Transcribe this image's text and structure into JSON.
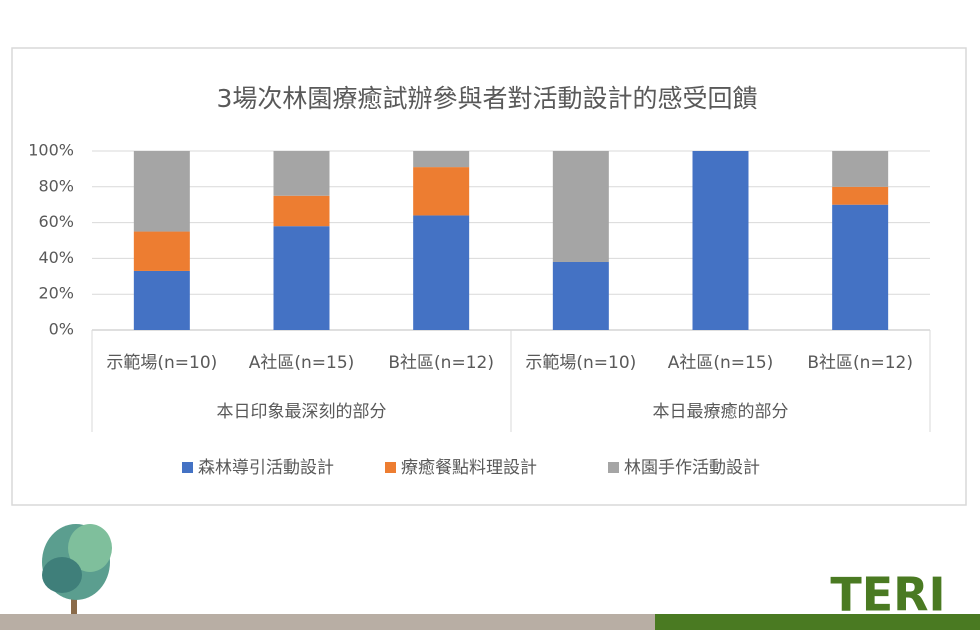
{
  "chart_data": {
    "type": "stacked-bar",
    "title": "3場次林園療癒試辦參與者對活動設計的感受回饋",
    "categories": [
      "示範場(n=10)",
      "A社區(n=15)",
      "B社區(n=12)",
      "示範場(n=10)",
      "A社區(n=15)",
      "B社區(n=12)"
    ],
    "category_groups": [
      "本日印象最深刻的部分",
      "本日最療癒的部分"
    ],
    "series": [
      {
        "name": "森林導引活動設計",
        "color": "#4472c4",
        "values": [
          33,
          58,
          64,
          38,
          100,
          70
        ]
      },
      {
        "name": "療癒餐點料理設計",
        "color": "#ed7d31",
        "values": [
          22,
          17,
          27,
          0,
          0,
          10
        ]
      },
      {
        "name": "林園手作活動設計",
        "color": "#a5a5a5",
        "values": [
          45,
          25,
          9,
          62,
          0,
          20
        ]
      }
    ],
    "ylim": [
      0,
      100
    ],
    "yticks": [
      {
        "value": 0,
        "label": "0%"
      },
      {
        "value": 20,
        "label": "20%"
      },
      {
        "value": 40,
        "label": "40%"
      },
      {
        "value": 60,
        "label": "60%"
      },
      {
        "value": 80,
        "label": "80%"
      },
      {
        "value": 100,
        "label": "100%"
      }
    ],
    "grid": true,
    "legend": "bottom"
  },
  "branding": {
    "logo_text": "TERI"
  }
}
